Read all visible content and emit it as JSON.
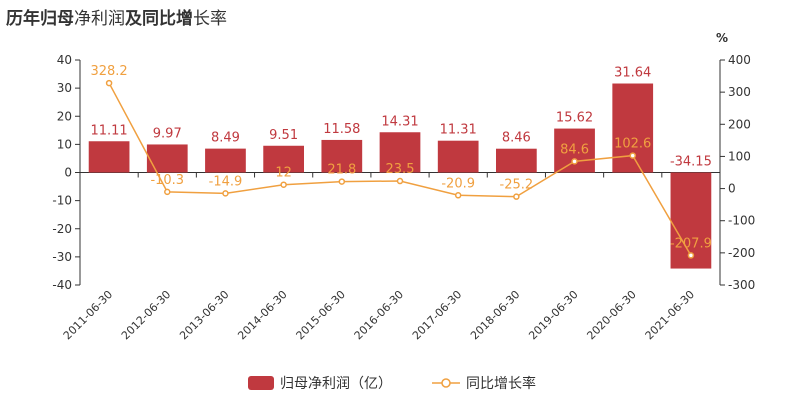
{
  "title": {
    "part1": "历年归母",
    "part2": "净利润",
    "part3": "及同比增",
    "part4": "长率"
  },
  "chart_data": {
    "type": "bar+line",
    "categories": [
      "2011-06-30",
      "2012-06-30",
      "2013-06-30",
      "2014-06-30",
      "2015-06-30",
      "2016-06-30",
      "2017-06-30",
      "2018-06-30",
      "2019-06-30",
      "2020-06-30",
      "2021-06-30"
    ],
    "series": [
      {
        "name": "归母净利润（亿）",
        "type": "bar",
        "axis": "left",
        "color": "#c0393f",
        "values": [
          11.11,
          9.97,
          8.49,
          9.51,
          11.58,
          14.31,
          11.31,
          8.46,
          15.62,
          31.64,
          -34.15
        ],
        "labels": [
          "11.11",
          "9.97",
          "8.49",
          "9.51",
          "11.58",
          "14.31",
          "11.31",
          "8.46",
          "15.62",
          "31.64",
          "-34.15"
        ]
      },
      {
        "name": "同比增长率",
        "type": "line",
        "axis": "right",
        "color": "#f0a040",
        "values": [
          328.2,
          -10.3,
          -14.9,
          12,
          21.8,
          23.5,
          -20.9,
          -25.2,
          84.6,
          102.6,
          -207.9
        ],
        "labels": [
          "328.2",
          "-10.3",
          "-14.9",
          "12",
          "21.8",
          "23.5",
          "-20.9",
          "-25.2",
          "84.6",
          "102.6",
          "-207.9"
        ]
      }
    ],
    "left_axis": {
      "min": -40,
      "max": 40,
      "step": 10
    },
    "right_axis": {
      "min": -300,
      "max": 400,
      "step": 100,
      "unit": "%"
    },
    "legend_position": "bottom-center",
    "grid": false
  }
}
